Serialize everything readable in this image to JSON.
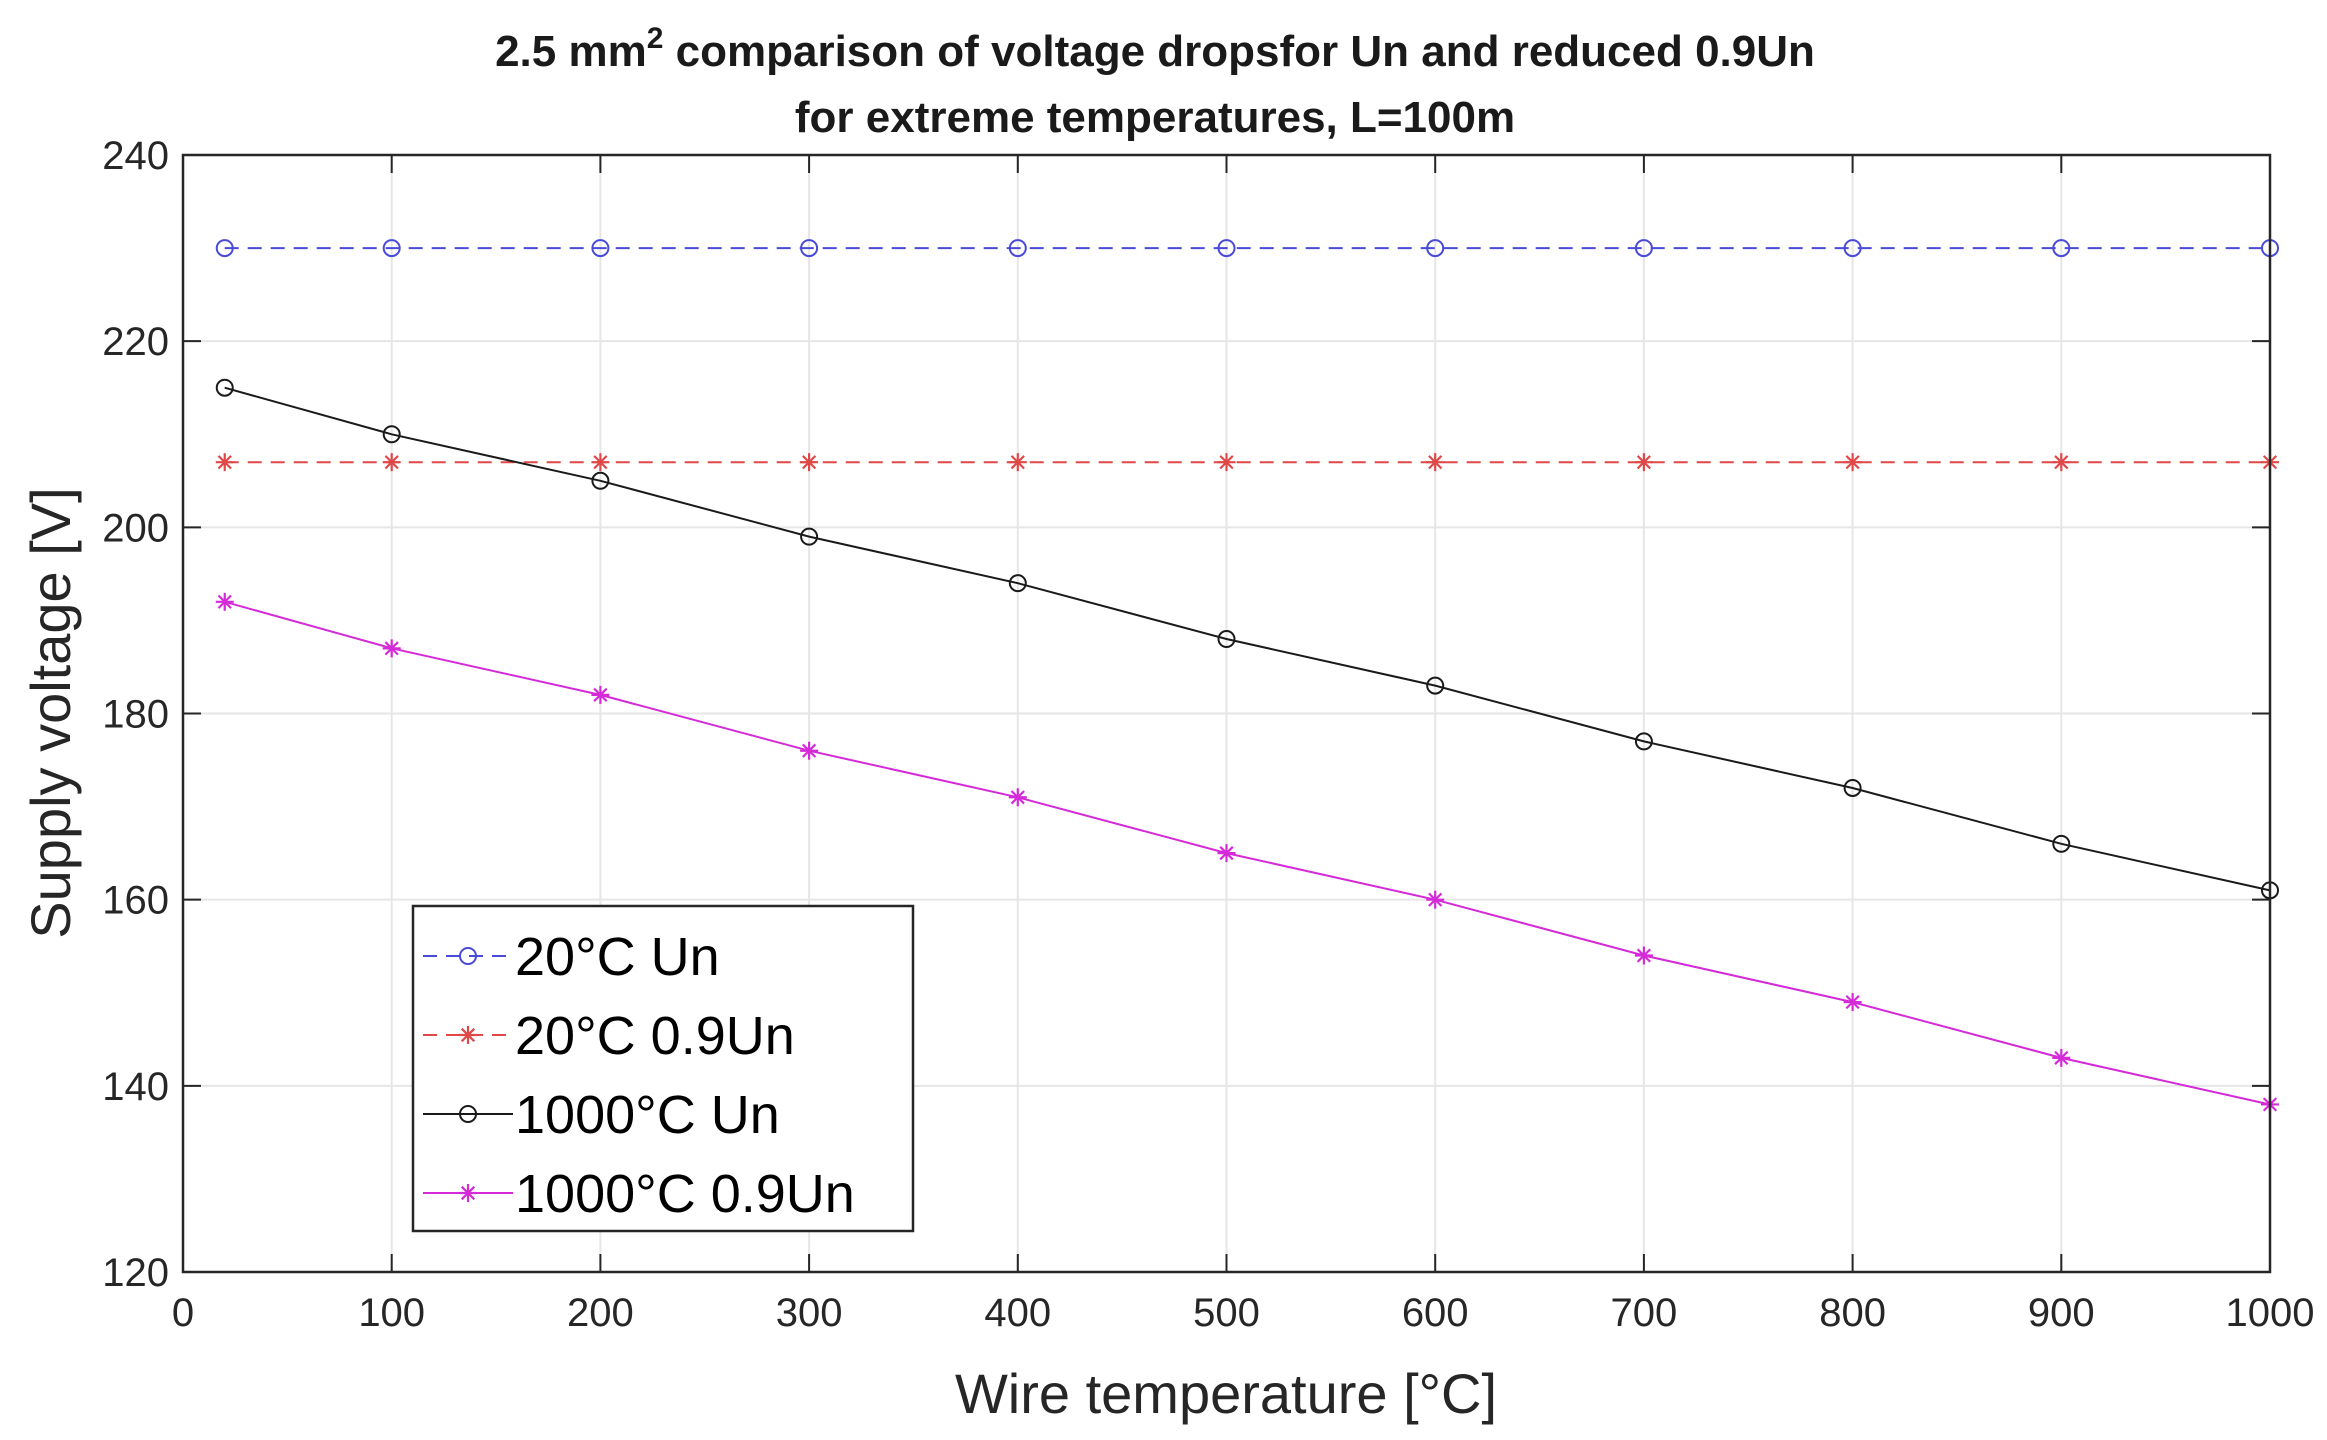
{
  "chart_data": {
    "type": "line",
    "title": {
      "line1_prefix": "2.5 mm",
      "line1_sup": "2",
      "line1_suffix": " comparison of voltage dropsfor Un and reduced 0.9Un",
      "line2": "for extreme temperatures, L=100m"
    },
    "xlabel": "Wire temperature [°C]",
    "ylabel": "Supply voltage [V]",
    "xlim": [
      0,
      1000
    ],
    "ylim": [
      120,
      240
    ],
    "xticks": [
      0,
      100,
      200,
      300,
      400,
      500,
      600,
      700,
      800,
      900,
      1000
    ],
    "yticks": [
      120,
      140,
      160,
      180,
      200,
      220,
      240
    ],
    "grid": true,
    "legend_position": "bottom-left",
    "x": [
      20,
      100,
      200,
      300,
      400,
      500,
      600,
      700,
      800,
      900,
      1000
    ],
    "series": [
      {
        "name": "20°C Un",
        "color": "#4a4ad8",
        "dash": "dashed",
        "marker": "circle",
        "values": [
          230,
          230,
          230,
          230,
          230,
          230,
          230,
          230,
          230,
          230,
          230
        ]
      },
      {
        "name": "20°C 0.9Un",
        "color": "#e04848",
        "dash": "dashed",
        "marker": "asterisk",
        "values": [
          207,
          207,
          207,
          207,
          207,
          207,
          207,
          207,
          207,
          207,
          207
        ]
      },
      {
        "name": "1000°C Un",
        "color": "#1a1a1a",
        "dash": "solid",
        "marker": "circle",
        "values": [
          215,
          210,
          205,
          199,
          194,
          188,
          183,
          177,
          172,
          166,
          161
        ]
      },
      {
        "name": "1000°C 0.9Un",
        "color": "#d42ad8",
        "dash": "solid",
        "marker": "asterisk",
        "values": [
          192,
          187,
          182,
          176,
          171,
          165,
          160,
          154,
          149,
          143,
          138
        ]
      }
    ]
  }
}
